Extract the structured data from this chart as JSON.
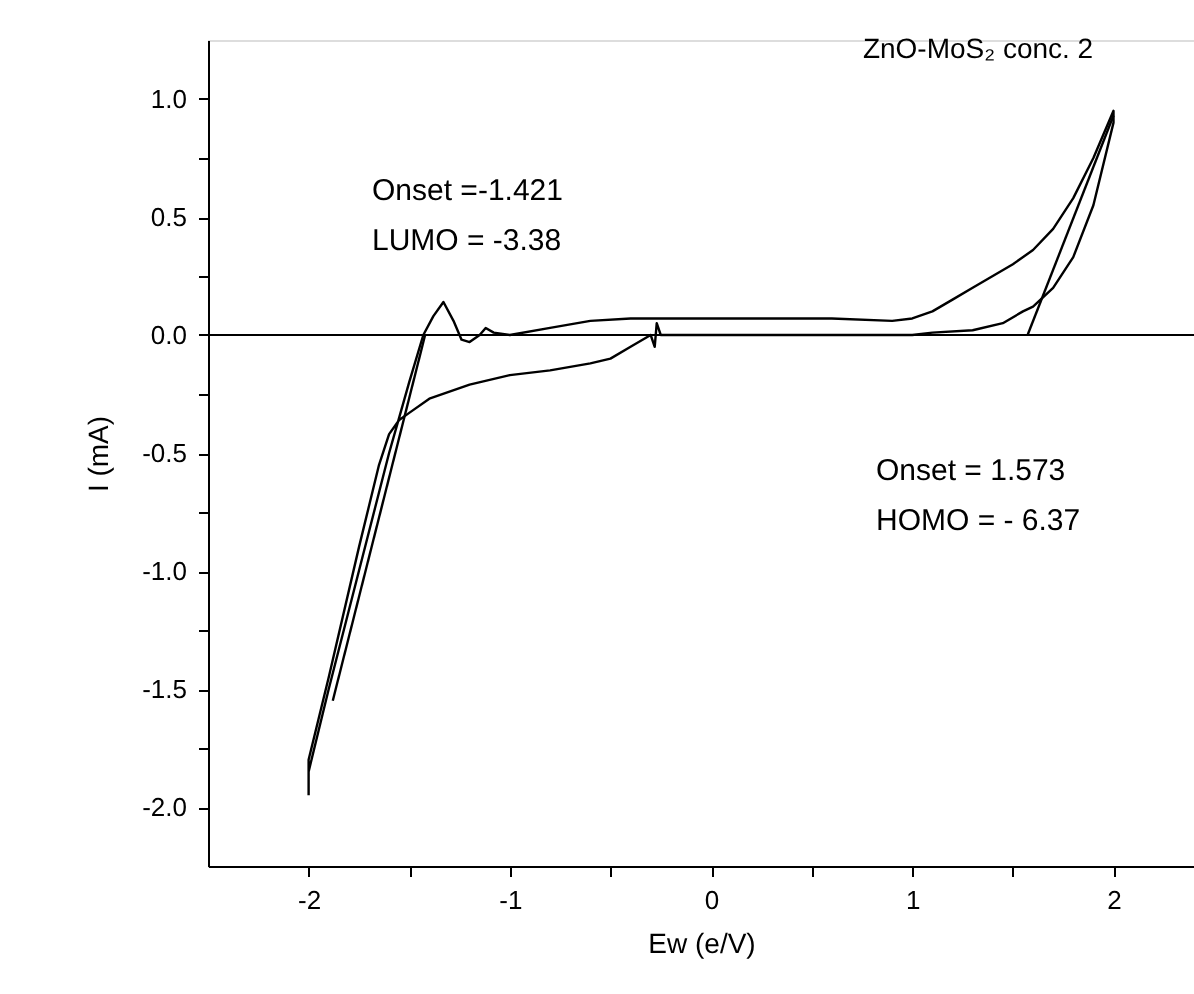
{
  "chart_data": {
    "type": "line",
    "title": "ZnO-MoS₂ conc. 2",
    "xlabel": "Ew (e/V)",
    "ylabel": "I (mA)",
    "annotations": [
      "Onset  =-1.421",
      "LUMO = -3.38",
      "Onset  =  1.573",
      "HOMO = - 6.37"
    ],
    "series": [
      {
        "color": "#000000",
        "x": [
          -2.0,
          -1.9,
          -1.75,
          -1.6,
          -1.55,
          -1.5,
          -1.43,
          -1.38,
          -1.33,
          -1.28,
          -1.24,
          -1.2,
          -1.15,
          -1.12,
          -1.08,
          -1.0,
          -0.8,
          -0.6,
          -0.4,
          -0.2,
          0.0,
          0.3,
          0.6,
          0.9,
          1.0,
          1.1,
          1.2,
          1.3,
          1.4,
          1.5,
          1.6,
          1.7,
          1.8,
          1.9,
          2.0,
          2.0,
          1.9,
          1.8,
          1.7,
          1.6,
          1.55,
          1.45,
          1.3,
          1.1,
          1.0,
          0.6,
          0.2,
          -0.2,
          -0.25,
          -0.27,
          -0.28,
          -0.3,
          -0.4,
          -0.5,
          -0.6,
          -0.8,
          -1.0,
          -1.2,
          -1.4,
          -1.5,
          -1.55,
          -1.6,
          -1.65,
          -1.75,
          -1.9,
          -2.0,
          -2.0
        ],
        "values": [
          -1.85,
          -1.5,
          -1.0,
          -0.5,
          -0.35,
          -0.2,
          0.0,
          0.08,
          0.14,
          0.06,
          -0.02,
          -0.03,
          0.0,
          0.03,
          0.01,
          0.0,
          0.03,
          0.06,
          0.07,
          0.07,
          0.07,
          0.07,
          0.07,
          0.06,
          0.07,
          0.1,
          0.15,
          0.2,
          0.25,
          0.3,
          0.36,
          0.45,
          0.58,
          0.75,
          0.95,
          0.9,
          0.55,
          0.33,
          0.2,
          0.12,
          0.1,
          0.05,
          0.02,
          0.01,
          0.0,
          0.0,
          0.0,
          0.0,
          0.0,
          0.05,
          -0.05,
          0.0,
          -0.05,
          -0.1,
          -0.12,
          -0.15,
          -0.17,
          -0.21,
          -0.27,
          -0.33,
          -0.36,
          -0.42,
          -0.55,
          -0.9,
          -1.45,
          -1.8,
          -1.95
        ]
      },
      {
        "color": "#000000",
        "x": [
          -1.421,
          -1.88
        ],
        "values": [
          0.0,
          -1.55
        ]
      },
      {
        "color": "#000000",
        "x": [
          1.573,
          2.0
        ],
        "values": [
          0.0,
          0.93
        ]
      }
    ],
    "ref_lines": [
      {
        "axis": "y",
        "value": 0,
        "color": "#000000"
      }
    ],
    "xlim": [
      -2.5,
      2.4
    ],
    "xticks": [
      -2,
      {
        "value": -1.5,
        "label": null
      },
      -1,
      {
        "value": -0.5,
        "label": null
      },
      0,
      {
        "value": 0.5,
        "label": null
      },
      1,
      {
        "value": 1.5,
        "label": null
      },
      2
    ],
    "ylim": [
      -2.25,
      1.25
    ],
    "yticks": [
      {
        "value": -2,
        "label": "-2.0"
      },
      {
        "value": -1.75,
        "label": null
      },
      {
        "value": -1.5,
        "label": "-1.5"
      },
      {
        "value": -1.25,
        "label": null
      },
      {
        "value": -1,
        "label": "-1.0"
      },
      {
        "value": -0.75,
        "label": null
      },
      {
        "value": -0.5,
        "label": "-0.5"
      },
      {
        "value": -0.25,
        "label": null
      },
      {
        "value": 0,
        "label": "0.0"
      },
      {
        "value": 0.25,
        "label": null
      },
      {
        "value": 0.5,
        "label": "0.5"
      },
      {
        "value": 0.75,
        "label": null
      },
      {
        "value": 1,
        "label": "1.0"
      }
    ],
    "grid": false,
    "marker": "none",
    "line_style": "solid"
  }
}
